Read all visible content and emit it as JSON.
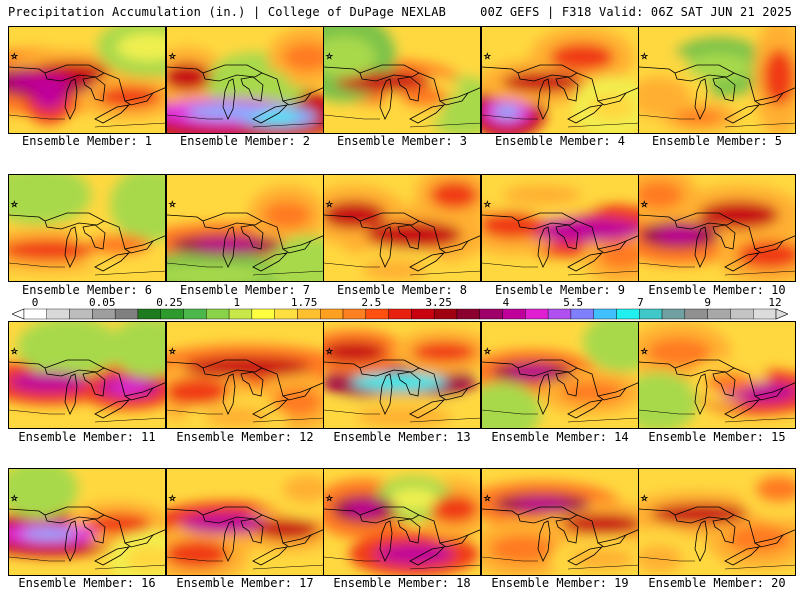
{
  "header": {
    "left": "Precipitation Accumulation (in.) | College of DuPage NEXLAB",
    "right": "00Z GEFS | F318 Valid: 06Z SAT JUN 21 2025"
  },
  "member_label_prefix": "Ensemble Member: ",
  "members": [
    {
      "id": "1",
      "blobs": [
        [
          30,
          55,
          70,
          22,
          5
        ],
        [
          60,
          45,
          50,
          15,
          4
        ],
        [
          120,
          70,
          40,
          15,
          3.5
        ],
        [
          40,
          70,
          20,
          18,
          5.5
        ],
        [
          140,
          20,
          40,
          20,
          1
        ]
      ]
    },
    {
      "id": "2",
      "blobs": [
        [
          60,
          85,
          90,
          20,
          7
        ],
        [
          110,
          90,
          50,
          15,
          8
        ],
        [
          20,
          50,
          30,
          20,
          4
        ],
        [
          90,
          55,
          40,
          20,
          0.5
        ],
        [
          140,
          30,
          30,
          20,
          3
        ]
      ]
    },
    {
      "id": "3",
      "blobs": [
        [
          60,
          55,
          60,
          15,
          4.5
        ],
        [
          20,
          30,
          40,
          30,
          0.3
        ],
        [
          140,
          80,
          30,
          20,
          0.6
        ],
        [
          100,
          70,
          30,
          15,
          2.5
        ]
      ]
    },
    {
      "id": "4",
      "blobs": [
        [
          25,
          85,
          30,
          18,
          7
        ],
        [
          60,
          55,
          50,
          15,
          4
        ],
        [
          100,
          30,
          40,
          20,
          3.5
        ],
        [
          130,
          80,
          30,
          20,
          1.5
        ]
      ]
    },
    {
      "id": "5",
      "blobs": [
        [
          80,
          40,
          40,
          20,
          0.3
        ],
        [
          140,
          50,
          20,
          40,
          3.5
        ],
        [
          20,
          70,
          40,
          30,
          2
        ],
        [
          60,
          90,
          30,
          10,
          3
        ]
      ]
    },
    {
      "id": "6",
      "blobs": [
        [
          40,
          75,
          60,
          15,
          3.5
        ],
        [
          110,
          70,
          40,
          15,
          2.5
        ],
        [
          30,
          20,
          40,
          20,
          0.5
        ],
        [
          140,
          30,
          30,
          25,
          0.6
        ]
      ]
    },
    {
      "id": "7",
      "blobs": [
        [
          60,
          70,
          70,
          15,
          5
        ],
        [
          120,
          40,
          30,
          20,
          3
        ],
        [
          40,
          100,
          80,
          15,
          0.3
        ],
        [
          140,
          90,
          30,
          20,
          0.6
        ]
      ]
    },
    {
      "id": "8",
      "blobs": [
        [
          30,
          40,
          40,
          20,
          4
        ],
        [
          90,
          60,
          60,
          20,
          4
        ],
        [
          130,
          20,
          30,
          20,
          3.5
        ],
        [
          70,
          95,
          40,
          15,
          2
        ]
      ]
    },
    {
      "id": "9",
      "blobs": [
        [
          100,
          55,
          80,
          18,
          5.5
        ],
        [
          30,
          50,
          40,
          20,
          3.5
        ],
        [
          60,
          20,
          50,
          15,
          2
        ],
        [
          140,
          80,
          30,
          20,
          3
        ]
      ]
    },
    {
      "id": "10",
      "blobs": [
        [
          40,
          60,
          50,
          20,
          5
        ],
        [
          100,
          40,
          50,
          20,
          4
        ],
        [
          130,
          80,
          40,
          20,
          3.5
        ],
        [
          20,
          20,
          30,
          20,
          3
        ]
      ]
    },
    {
      "id": "11",
      "blobs": [
        [
          40,
          60,
          50,
          15,
          5.5
        ],
        [
          120,
          65,
          40,
          15,
          6
        ],
        [
          60,
          25,
          40,
          20,
          0.6
        ],
        [
          140,
          25,
          30,
          20,
          0.5
        ]
      ]
    },
    {
      "id": "12",
      "blobs": [
        [
          80,
          45,
          80,
          15,
          4.5
        ],
        [
          30,
          70,
          40,
          20,
          3.5
        ],
        [
          130,
          80,
          30,
          20,
          3
        ],
        [
          70,
          95,
          40,
          15,
          2
        ]
      ]
    },
    {
      "id": "13",
      "blobs": [
        [
          75,
          60,
          60,
          12,
          9
        ],
        [
          30,
          30,
          40,
          15,
          4.5
        ],
        [
          120,
          30,
          40,
          15,
          3.5
        ],
        [
          80,
          95,
          60,
          15,
          2
        ]
      ]
    },
    {
      "id": "14",
      "blobs": [
        [
          50,
          50,
          50,
          15,
          5
        ],
        [
          110,
          70,
          40,
          15,
          3
        ],
        [
          140,
          20,
          30,
          20,
          0.5
        ],
        [
          20,
          90,
          30,
          20,
          0.6
        ]
      ]
    },
    {
      "id": "15",
      "blobs": [
        [
          120,
          70,
          50,
          15,
          5.5
        ],
        [
          40,
          30,
          40,
          20,
          3
        ],
        [
          20,
          80,
          30,
          20,
          0.5
        ],
        [
          90,
          60,
          30,
          15,
          2.5
        ]
      ]
    },
    {
      "id": "16",
      "blobs": [
        [
          40,
          65,
          60,
          15,
          7
        ],
        [
          110,
          55,
          40,
          15,
          3.5
        ],
        [
          30,
          20,
          30,
          20,
          0.5
        ],
        [
          140,
          90,
          30,
          20,
          1.5
        ]
      ]
    },
    {
      "id": "17",
      "blobs": [
        [
          60,
          55,
          60,
          15,
          5.5
        ],
        [
          120,
          60,
          40,
          15,
          4
        ],
        [
          30,
          85,
          40,
          20,
          3.5
        ],
        [
          140,
          20,
          30,
          20,
          2
        ]
      ]
    },
    {
      "id": "18",
      "blobs": [
        [
          40,
          40,
          40,
          20,
          5
        ],
        [
          90,
          85,
          50,
          15,
          5.5
        ],
        [
          130,
          40,
          30,
          20,
          3.5
        ],
        [
          90,
          30,
          30,
          15,
          1
        ]
      ]
    },
    {
      "id": "19",
      "blobs": [
        [
          60,
          35,
          60,
          15,
          5
        ],
        [
          120,
          55,
          50,
          15,
          4
        ],
        [
          40,
          80,
          40,
          20,
          3
        ],
        [
          120,
          90,
          40,
          15,
          2
        ]
      ]
    },
    {
      "id": "20",
      "blobs": [
        [
          60,
          45,
          60,
          15,
          4
        ],
        [
          120,
          70,
          40,
          20,
          3
        ],
        [
          20,
          90,
          30,
          20,
          2
        ],
        [
          140,
          20,
          30,
          20,
          2.5
        ]
      ]
    }
  ],
  "colorbar": {
    "ticks": [
      "0",
      "0.05",
      "0.25",
      "1",
      "1.75",
      "2.5",
      "3.25",
      "4",
      "5.5",
      "7",
      "9",
      "12"
    ],
    "colors": [
      "#ffffff",
      "#d9d9d9",
      "#bdbdbd",
      "#9e9e9e",
      "#7f7f7f",
      "#1e7a1e",
      "#2e9a2e",
      "#4cb84c",
      "#8ad24a",
      "#c8e84a",
      "#ffff40",
      "#ffe040",
      "#ffc030",
      "#ffa020",
      "#ff8020",
      "#ff5010",
      "#e82010",
      "#c80010",
      "#a00010",
      "#8c0030",
      "#a0006a",
      "#c0009a",
      "#e020d0",
      "#b050f0",
      "#8080ff",
      "#40c0ff",
      "#20f0f0",
      "#40c8c8",
      "#70a0a0",
      "#909090",
      "#a8a8a8",
      "#c4c4c4",
      "#dcdcdc"
    ]
  }
}
